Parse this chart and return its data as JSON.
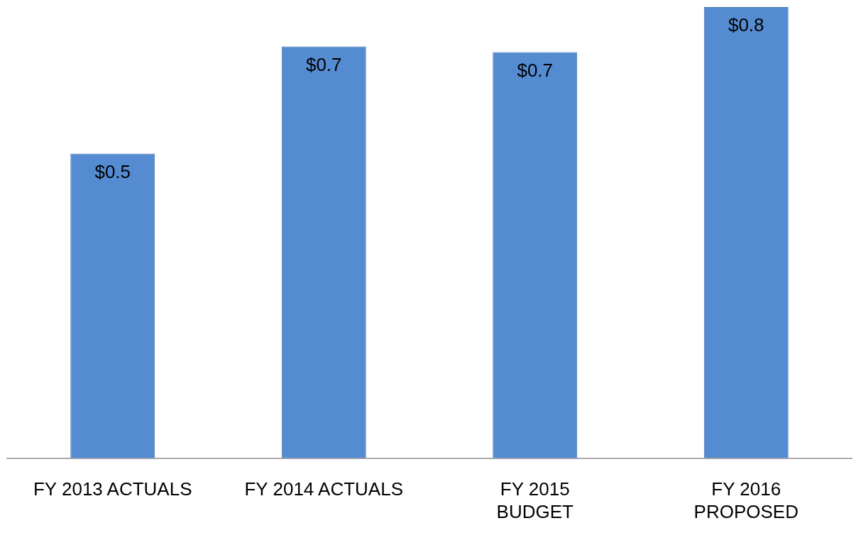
{
  "chart_data": {
    "type": "bar",
    "categories": [
      "FY 2013 ACTUALS",
      "FY 2014 ACTUALS",
      "FY 2015\nBUDGET",
      "FY 2016\nPROPOSED"
    ],
    "values": [
      0.54,
      0.73,
      0.72,
      0.8
    ],
    "value_labels": [
      "$0.5",
      "$0.7",
      "$0.7",
      "$0.8"
    ],
    "color": "#558bd0",
    "tick_labels": "x",
    "grid": false,
    "legend": false
  }
}
